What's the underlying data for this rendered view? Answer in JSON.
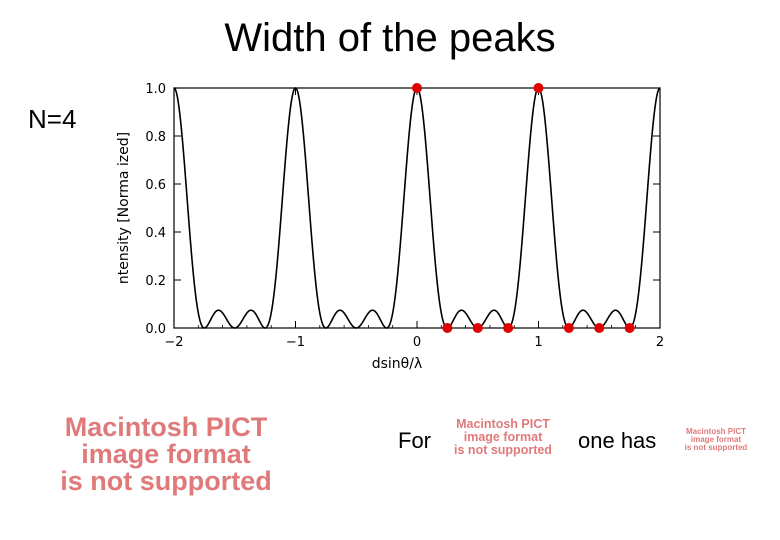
{
  "slide": {
    "title": "Width of the peaks",
    "n_label": "N=4",
    "pict_placeholder_large": [
      "Macintosh PICT",
      "image format",
      "is not supported"
    ],
    "pict_placeholder_mid": [
      "Macintosh PICT",
      "image format",
      "is not supported"
    ],
    "pict_placeholder_small": [
      "Macintosh PICT",
      "image format",
      "is not supported"
    ],
    "text_for": "For",
    "text_one_has": "one has",
    "marker_color": "#e00000",
    "placeholder_color": "#e07a7a"
  },
  "chart_data": {
    "type": "line",
    "function": "grating intensity sin^2(N*pi*x)/(N^2*sin^2(pi*x)) with N=4",
    "xlabel": "dsinθ/λ",
    "ylabel": "ntensity [Norma ized]",
    "xlim": [
      -2,
      2
    ],
    "ylim": [
      0,
      1
    ],
    "x_ticks": [
      "−2",
      "−1",
      "0",
      "1",
      "2"
    ],
    "y_ticks": [
      "0.0",
      "0.2",
      "0.4",
      "0.6",
      "0.8",
      "1.0"
    ],
    "markers": [
      {
        "x": 0,
        "y": 1.0
      },
      {
        "x": 1,
        "y": 1.0
      },
      {
        "x": 0.25,
        "y": 0
      },
      {
        "x": 0.5,
        "y": 0
      },
      {
        "x": 0.75,
        "y": 0
      },
      {
        "x": 1.25,
        "y": 0
      },
      {
        "x": 1.5,
        "y": 0
      },
      {
        "x": 1.75,
        "y": 0
      }
    ]
  }
}
